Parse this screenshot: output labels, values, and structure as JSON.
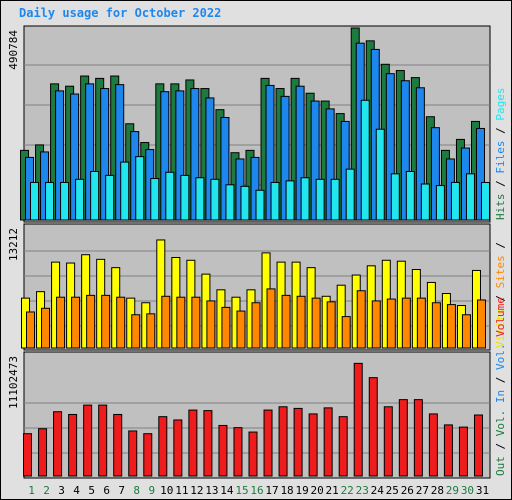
{
  "chart_data": {
    "type": "bar",
    "title": "Daily usage for October 2022",
    "categories": [
      "1",
      "2",
      "3",
      "4",
      "5",
      "6",
      "7",
      "8",
      "9",
      "10",
      "11",
      "12",
      "13",
      "14",
      "15",
      "16",
      "17",
      "18",
      "19",
      "20",
      "21",
      "22",
      "23",
      "24",
      "25",
      "26",
      "27",
      "28",
      "29",
      "30",
      "31"
    ],
    "weekend_days": [
      "1",
      "2",
      "8",
      "9",
      "15",
      "16",
      "22",
      "23",
      "29",
      "30"
    ],
    "panels": [
      {
        "id": "top",
        "ymax_label": "490784",
        "ymax": 490784,
        "series": [
          {
            "name": "Hits",
            "color": "#1e7b40",
            "values": [
              178000,
              192000,
              348000,
              342000,
              368000,
              362000,
              368000,
              246000,
              198000,
              348000,
              348000,
              358000,
              336000,
              282000,
              172000,
              178000,
              362000,
              336000,
              362000,
              324000,
              304000,
              272000,
              490784,
              458000,
              398000,
              382000,
              364000,
              264000,
              178000,
              206000,
              252000
            ]
          },
          {
            "name": "Files",
            "color": "#1e87ee",
            "values": [
              160000,
              174000,
              330000,
              322000,
              348000,
              336000,
              346000,
              226000,
              180000,
              328000,
              330000,
              336000,
              312000,
              262000,
              156000,
              160000,
              344000,
              316000,
              342000,
              304000,
              284000,
              252000,
              452000,
              436000,
              374000,
              356000,
              338000,
              236000,
              156000,
              184000,
              234000
            ]
          },
          {
            "name": "Pages",
            "color": "#22e6ee",
            "values": [
              96000,
              96000,
              96000,
              104000,
              124000,
              114000,
              148000,
              162000,
              106000,
              122000,
              114000,
              108000,
              104000,
              90000,
              86000,
              76000,
              96000,
              100000,
              108000,
              104000,
              104000,
              130000,
              306000,
              232000,
              118000,
              124000,
              92000,
              88000,
              96000,
              118000,
              96000
            ]
          }
        ]
      },
      {
        "id": "mid",
        "ymax_label": "13212",
        "ymax": 13212,
        "series": [
          {
            "name": "Visits",
            "color": "#ffff00",
            "values": [
              5400,
              6100,
              9300,
              9200,
              10100,
              9600,
              8700,
              5400,
              4900,
              11700,
              9800,
              9500,
              8000,
              6300,
              5500,
              6300,
              10300,
              9300,
              9300,
              8700,
              5600,
              6800,
              7900,
              8900,
              9500,
              9400,
              8500,
              7100,
              5900,
              4600,
              8400
            ]
          },
          {
            "name": "Sites",
            "color": "#ff8800",
            "values": [
              3900,
              4300,
              5500,
              5500,
              5700,
              5700,
              5500,
              3600,
              3700,
              5600,
              5500,
              5500,
              5100,
              4400,
              4000,
              4900,
              6400,
              5700,
              5600,
              5400,
              5000,
              3400,
              6200,
              5100,
              5300,
              5400,
              5400,
              4900,
              4700,
              3600,
              5200
            ]
          }
        ]
      },
      {
        "id": "bottom",
        "ymax_label": "11102473",
        "ymax": 11102473,
        "series": [
          {
            "name": "Volume",
            "color": "#ee1c1c",
            "values": [
              3850000,
              4300000,
              5850000,
              5600000,
              6450000,
              6450000,
              5600000,
              4100000,
              3850000,
              5400000,
              5100000,
              6000000,
              5950000,
              4600000,
              4400000,
              4000000,
              6000000,
              6300000,
              6150000,
              5650000,
              6200000,
              5400000,
              10250000,
              8950000,
              6300000,
              6950000,
              6950000,
              5650000,
              4650000,
              4450000,
              5550000
            ]
          }
        ]
      }
    ],
    "right_legend": [
      {
        "group": "top",
        "items": [
          {
            "text": "Hits",
            "color": "#1e7b40"
          },
          {
            "text": "/",
            "color": "#000000"
          },
          {
            "text": "Files",
            "color": "#1e87ee"
          },
          {
            "text": "/",
            "color": "#000000"
          },
          {
            "text": "Pages",
            "color": "#22e6ee"
          }
        ]
      },
      {
        "group": "mid",
        "items": [
          {
            "text": "Visits",
            "color": "#e6e600"
          },
          {
            "text": "/",
            "color": "#000000"
          },
          {
            "text": "Sites",
            "color": "#ff8800"
          },
          {
            "text": "/",
            "color": "#000000"
          }
        ]
      },
      {
        "group": "bottom",
        "items": [
          {
            "text": "Out",
            "color": "#1e7b40"
          },
          {
            "text": "/",
            "color": "#000000"
          },
          {
            "text": "Vol.",
            "color": "#1e7b40"
          },
          {
            "text": "In",
            "color": "#1e87ee"
          },
          {
            "text": "/",
            "color": "#000000"
          },
          {
            "text": "Vol.",
            "color": "#1e87ee"
          },
          {
            "text": "Volume",
            "color": "#ee1c1c"
          }
        ]
      }
    ],
    "colors": {
      "title": "#1e87ee",
      "plot_bg": "#c0c0c0",
      "grid": "#808080",
      "weekend_label": "#1e7b40",
      "weekday_label": "#000000"
    }
  }
}
